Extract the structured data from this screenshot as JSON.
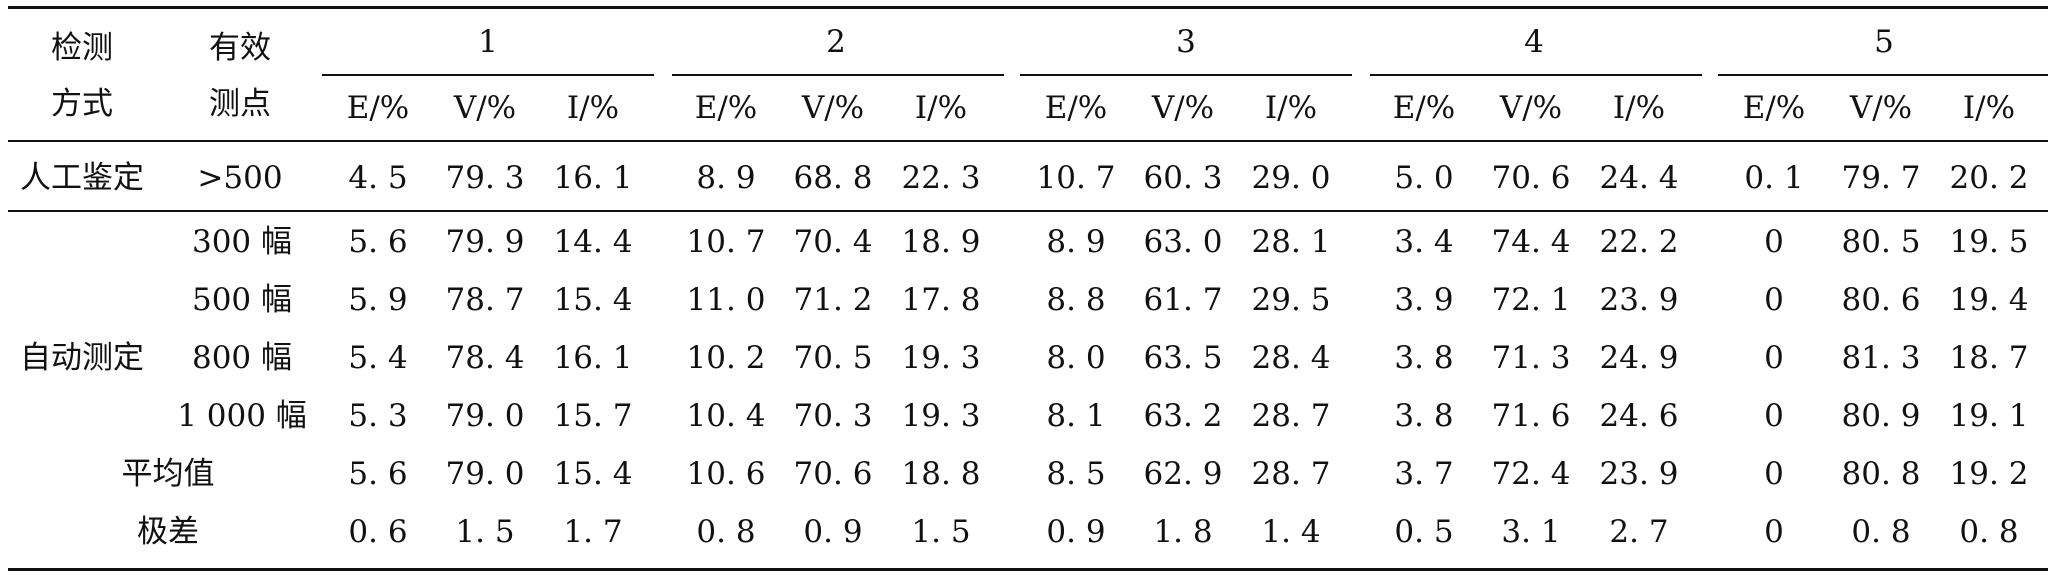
{
  "header": {
    "col1_line1": "检测",
    "col1_line2": "方式",
    "col2_line1": "有效",
    "col2_line2": "测点",
    "groups": [
      "1",
      "2",
      "3",
      "4",
      "5"
    ],
    "subcols": [
      "E/%",
      "V/%",
      "I/%"
    ]
  },
  "manual_row": {
    "method": "人工鉴定",
    "points": ">500",
    "values": [
      "4. 5",
      "79. 3",
      "16. 1",
      "8. 9",
      "68. 8",
      "22. 3",
      "10. 7",
      "60. 3",
      "29. 0",
      "5. 0",
      "70. 6",
      "24. 4",
      "0. 1",
      "79. 7",
      "20. 2"
    ]
  },
  "auto_method": "自动测定",
  "auto_rows": [
    {
      "points": "300 幅",
      "values": [
        "5. 6",
        "79. 9",
        "14. 4",
        "10. 7",
        "70. 4",
        "18. 9",
        "8. 9",
        "63. 0",
        "28. 1",
        "3. 4",
        "74. 4",
        "22. 2",
        "0",
        "80. 5",
        "19. 5"
      ]
    },
    {
      "points": "500 幅",
      "values": [
        "5. 9",
        "78. 7",
        "15. 4",
        "11. 0",
        "71. 2",
        "17. 8",
        "8. 8",
        "61. 7",
        "29. 5",
        "3. 9",
        "72. 1",
        "23. 9",
        "0",
        "80. 6",
        "19. 4"
      ]
    },
    {
      "points": "800 幅",
      "values": [
        "5. 4",
        "78. 4",
        "16. 1",
        "10. 2",
        "70. 5",
        "19. 3",
        "8. 0",
        "63. 5",
        "28. 4",
        "3. 8",
        "71. 3",
        "24. 9",
        "0",
        "81. 3",
        "18. 7"
      ]
    },
    {
      "points": "1 000 幅",
      "values": [
        "5. 3",
        "79. 0",
        "15. 7",
        "10. 4",
        "70. 3",
        "19. 3",
        "8. 1",
        "63. 2",
        "28. 7",
        "3. 8",
        "71. 6",
        "24. 6",
        "0",
        "80. 9",
        "19. 1"
      ]
    }
  ],
  "summary_rows": [
    {
      "label": "平均值",
      "values": [
        "5. 6",
        "79. 0",
        "15. 4",
        "10. 6",
        "70. 6",
        "18. 8",
        "8. 5",
        "62. 9",
        "28. 7",
        "3. 7",
        "72. 4",
        "23. 9",
        "0",
        "80. 8",
        "19. 2"
      ]
    },
    {
      "label": "极差",
      "values": [
        "0. 6",
        "1. 5",
        "1. 7",
        "0. 8",
        "0. 9",
        "1. 5",
        "0. 9",
        "1. 8",
        "1. 4",
        "0. 5",
        "3. 1",
        "2. 7",
        "0",
        "0. 8",
        "0. 8"
      ]
    }
  ]
}
